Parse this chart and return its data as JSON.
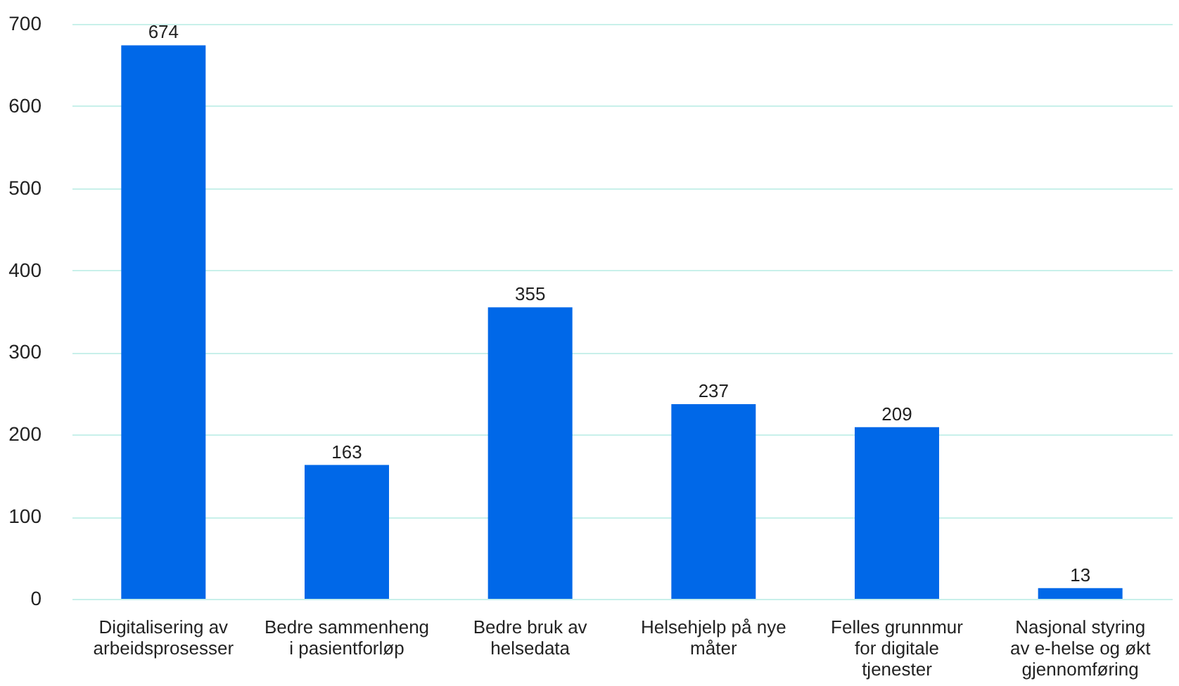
{
  "chart_data": {
    "type": "bar",
    "categories": [
      "Digitalisering av arbeidsprosesser",
      "Bedre sammenheng i pasientforløp",
      "Bedre bruk av helsedata",
      "Helsehjelp på nye måter",
      "Felles grunnmur for digitale tjenester",
      "Nasjonal styring av e-helse og økt gjennomføring"
    ],
    "values": [
      674,
      163,
      355,
      237,
      209,
      13
    ],
    "color": "#0068e8",
    "ylim": [
      0,
      700
    ],
    "yticks": [
      0,
      100,
      200,
      300,
      400,
      500,
      600,
      700
    ],
    "grid": "y",
    "data_labels": true
  }
}
